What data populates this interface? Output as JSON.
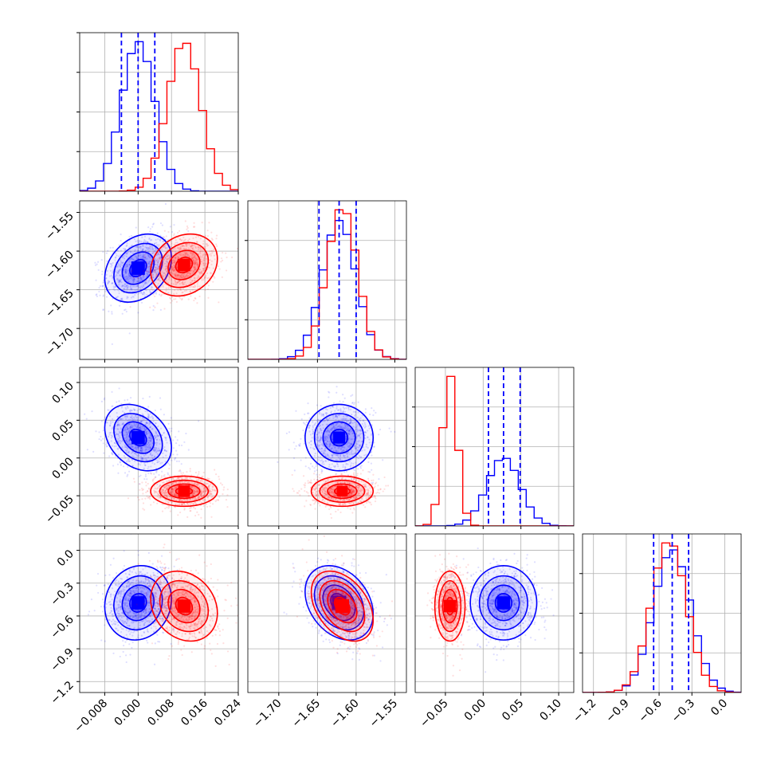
{
  "chart_data": {
    "type": "corner",
    "colors": {
      "blue": "#0000ff",
      "red": "#ff0000",
      "grid": "#b0b0b0",
      "frame": "#000000"
    },
    "grid": true,
    "params": [
      {
        "range": [
          -0.014,
          0.024
        ],
        "ticks": [
          -0.008,
          0.0,
          0.008,
          0.016,
          0.024
        ],
        "tick_labels": [
          "−0.008",
          "0.000",
          "0.008",
          "0.016",
          "0.024"
        ]
      },
      {
        "range": [
          -1.74,
          -1.535
        ],
        "ticks": [
          -1.7,
          -1.65,
          -1.6,
          -1.55
        ],
        "tick_labels": [
          "−1.70",
          "−1.65",
          "−1.60",
          "−1.55"
        ]
      },
      {
        "range": [
          -0.09,
          0.12
        ],
        "ticks": [
          -0.05,
          0.0,
          0.05,
          0.1
        ],
        "tick_labels": [
          "−0.05",
          "0.00",
          "0.05",
          "0.10"
        ]
      },
      {
        "range": [
          -1.3,
          0.15
        ],
        "ticks": [
          -1.2,
          -0.9,
          -0.6,
          -0.3,
          0.0
        ],
        "tick_labels": [
          "−1.2",
          "−0.9",
          "−0.6",
          "−0.3",
          "0.0"
        ]
      }
    ],
    "series": [
      {
        "color": "blue",
        "mean": [
          0.0,
          -1.622,
          0.027,
          -0.48
        ],
        "sigma": [
          0.004,
          0.022,
          0.022,
          0.17
        ],
        "quantiles": [
          [
            -0.004,
            0.0,
            0.004
          ],
          [
            -1.648,
            -1.622,
            -1.6
          ],
          [
            0.007,
            0.027,
            0.049
          ],
          [
            -0.65,
            -0.48,
            -0.33
          ]
        ],
        "corr": {
          "0-1": 0.3,
          "0-2": -0.3,
          "0-3": 0.1,
          "1-2": 0.0,
          "1-3": -0.3,
          "2-3": 0.0
        }
      },
      {
        "color": "red",
        "mean": [
          0.011,
          -1.618,
          -0.044,
          -0.51
        ],
        "sigma": [
          0.004,
          0.02,
          0.01,
          0.16
        ],
        "corr": {
          "0-1": 0.2,
          "0-2": 0.0,
          "0-3": -0.2,
          "1-2": 0.0,
          "1-3": -0.4,
          "2-3": 0.0
        }
      }
    ]
  }
}
